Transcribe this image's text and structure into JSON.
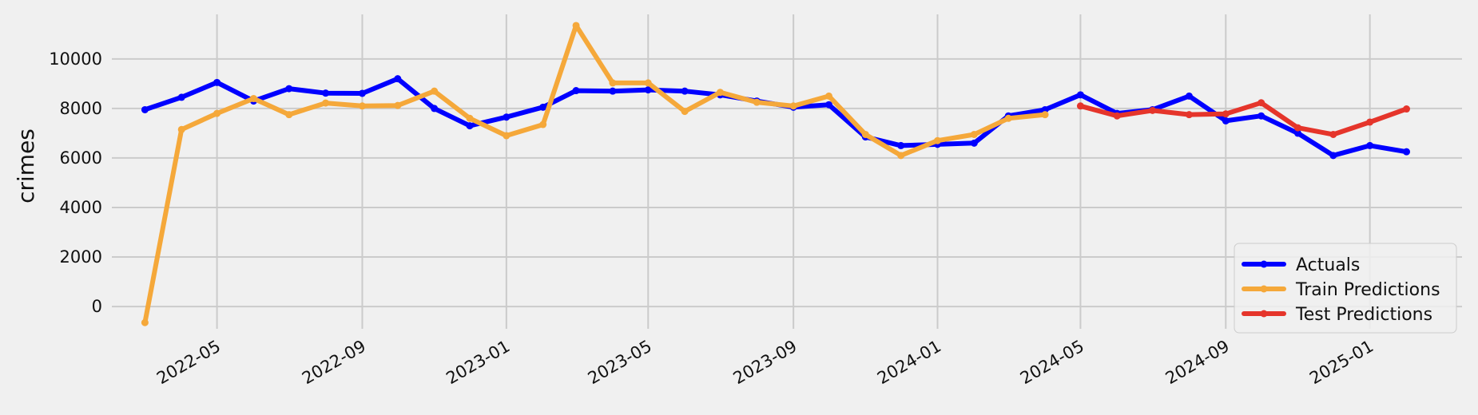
{
  "chart_data": {
    "type": "line",
    "title": "",
    "xlabel": "",
    "ylabel": "crimes",
    "x_axis_type": "date",
    "grid": true,
    "legend_position": "lower right",
    "xlim": [
      "2022-02-01",
      "2025-03-20"
    ],
    "ylim": [
      -900,
      11800
    ],
    "y_ticks": [
      0,
      2000,
      4000,
      6000,
      8000,
      10000
    ],
    "x_ticks": [
      "2022-05",
      "2022-09",
      "2023-01",
      "2023-05",
      "2023-09",
      "2024-01",
      "2024-05",
      "2024-09",
      "2025-01"
    ],
    "colors": {
      "background": "#f0f0f0",
      "grid": "#cbcbcb",
      "actuals": "#0000ff",
      "train": "#f5a83a",
      "test": "#e5352b"
    },
    "series": [
      {
        "name": "Actuals",
        "color": "#0000ff",
        "points": [
          {
            "x": "2022-03-01",
            "y": 7950
          },
          {
            "x": "2022-04-01",
            "y": 8450
          },
          {
            "x": "2022-05-01",
            "y": 9050
          },
          {
            "x": "2022-06-01",
            "y": 8300
          },
          {
            "x": "2022-07-01",
            "y": 8800
          },
          {
            "x": "2022-08-01",
            "y": 8620
          },
          {
            "x": "2022-09-01",
            "y": 8610
          },
          {
            "x": "2022-10-01",
            "y": 9200
          },
          {
            "x": "2022-11-01",
            "y": 8000
          },
          {
            "x": "2022-12-01",
            "y": 7300
          },
          {
            "x": "2023-01-01",
            "y": 7650
          },
          {
            "x": "2023-02-01",
            "y": 8050
          },
          {
            "x": "2023-03-01",
            "y": 8720
          },
          {
            "x": "2023-04-01",
            "y": 8700
          },
          {
            "x": "2023-05-01",
            "y": 8750
          },
          {
            "x": "2023-06-01",
            "y": 8700
          },
          {
            "x": "2023-07-01",
            "y": 8550
          },
          {
            "x": "2023-08-01",
            "y": 8300
          },
          {
            "x": "2023-09-01",
            "y": 8050
          },
          {
            "x": "2023-10-01",
            "y": 8150
          },
          {
            "x": "2023-11-01",
            "y": 6850
          },
          {
            "x": "2023-12-01",
            "y": 6500
          },
          {
            "x": "2024-01-01",
            "y": 6550
          },
          {
            "x": "2024-02-01",
            "y": 6600
          },
          {
            "x": "2024-03-01",
            "y": 7700
          },
          {
            "x": "2024-04-01",
            "y": 7950
          },
          {
            "x": "2024-05-01",
            "y": 8550
          },
          {
            "x": "2024-06-01",
            "y": 7800
          },
          {
            "x": "2024-07-01",
            "y": 7950
          },
          {
            "x": "2024-08-01",
            "y": 8500
          },
          {
            "x": "2024-09-01",
            "y": 7500
          },
          {
            "x": "2024-10-01",
            "y": 7700
          },
          {
            "x": "2024-11-01",
            "y": 7000
          },
          {
            "x": "2024-12-01",
            "y": 6100
          },
          {
            "x": "2025-01-01",
            "y": 6500
          },
          {
            "x": "2025-02-01",
            "y": 6250
          }
        ]
      },
      {
        "name": "Train Predictions",
        "color": "#f5a83a",
        "points": [
          {
            "x": "2022-03-01",
            "y": -650
          },
          {
            "x": "2022-04-01",
            "y": 7150
          },
          {
            "x": "2022-05-01",
            "y": 7800
          },
          {
            "x": "2022-06-01",
            "y": 8400
          },
          {
            "x": "2022-07-01",
            "y": 7750
          },
          {
            "x": "2022-08-01",
            "y": 8220
          },
          {
            "x": "2022-09-01",
            "y": 8100
          },
          {
            "x": "2022-10-01",
            "y": 8120
          },
          {
            "x": "2022-11-01",
            "y": 8700
          },
          {
            "x": "2022-12-01",
            "y": 7600
          },
          {
            "x": "2023-01-01",
            "y": 6900
          },
          {
            "x": "2023-02-01",
            "y": 7350
          },
          {
            "x": "2023-03-01",
            "y": 11350
          },
          {
            "x": "2023-04-01",
            "y": 9030
          },
          {
            "x": "2023-05-01",
            "y": 9030
          },
          {
            "x": "2023-06-01",
            "y": 7880
          },
          {
            "x": "2023-07-01",
            "y": 8650
          },
          {
            "x": "2023-08-01",
            "y": 8250
          },
          {
            "x": "2023-09-01",
            "y": 8100
          },
          {
            "x": "2023-10-01",
            "y": 8500
          },
          {
            "x": "2023-11-01",
            "y": 6950
          },
          {
            "x": "2023-12-01",
            "y": 6100
          },
          {
            "x": "2024-01-01",
            "y": 6700
          },
          {
            "x": "2024-02-01",
            "y": 6950
          },
          {
            "x": "2024-03-01",
            "y": 7600
          },
          {
            "x": "2024-04-01",
            "y": 7750
          }
        ]
      },
      {
        "name": "Test Predictions",
        "color": "#e5352b",
        "points": [
          {
            "x": "2024-05-01",
            "y": 8100
          },
          {
            "x": "2024-06-01",
            "y": 7700
          },
          {
            "x": "2024-07-01",
            "y": 7920
          },
          {
            "x": "2024-08-01",
            "y": 7750
          },
          {
            "x": "2024-09-01",
            "y": 7780
          },
          {
            "x": "2024-10-01",
            "y": 8230
          },
          {
            "x": "2024-11-01",
            "y": 7220
          },
          {
            "x": "2024-12-01",
            "y": 6950
          },
          {
            "x": "2025-01-01",
            "y": 7450
          },
          {
            "x": "2025-02-01",
            "y": 7980
          }
        ]
      }
    ]
  }
}
